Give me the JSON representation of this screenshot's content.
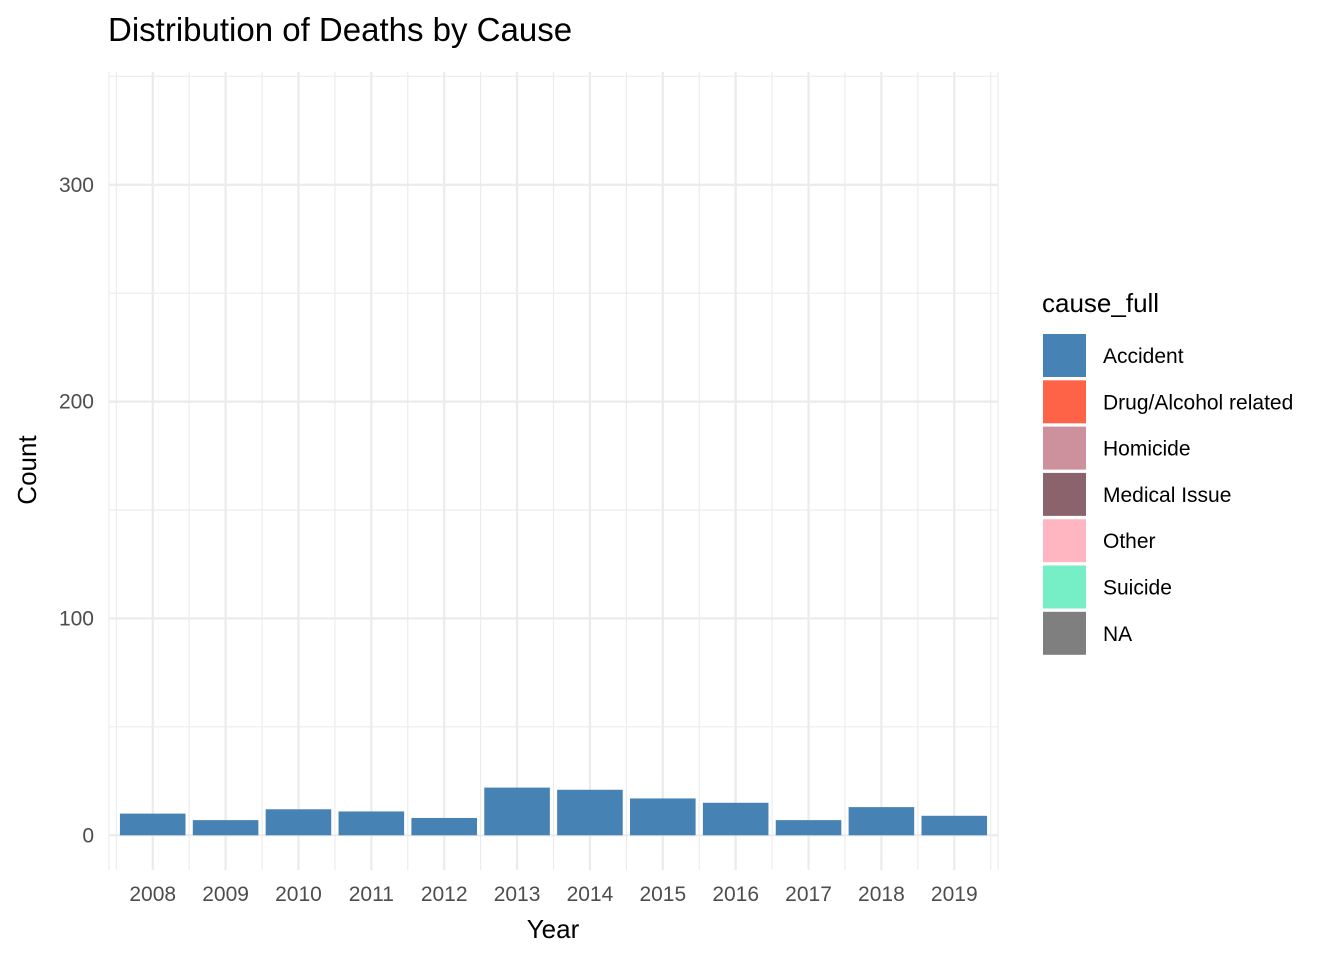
{
  "chart_data": {
    "type": "bar",
    "title": "Distribution of Deaths by Cause",
    "xlabel": "Year",
    "ylabel": "Count",
    "categories": [
      "2008",
      "2009",
      "2010",
      "2011",
      "2012",
      "2013",
      "2014",
      "2015",
      "2016",
      "2017",
      "2018",
      "2019"
    ],
    "series": [
      {
        "name": "Accident",
        "color": "#4682b4",
        "values": [
          10,
          7,
          12,
          11,
          8,
          22,
          21,
          17,
          15,
          7,
          13,
          9
        ]
      }
    ],
    "y_ticks": [
      0,
      100,
      200,
      300
    ],
    "ylim": [
      -16,
      352
    ],
    "grid": true,
    "legend": {
      "title": "cause_full",
      "position": "right",
      "entries": [
        {
          "label": "Accident",
          "color": "#4682b4"
        },
        {
          "label": "Drug/Alcohol related",
          "color": "#ff6347"
        },
        {
          "label": "Homicide",
          "color": "#cd919e"
        },
        {
          "label": "Medical Issue",
          "color": "#8b636c"
        },
        {
          "label": "Other",
          "color": "#ffb6c1"
        },
        {
          "label": "Suicide",
          "color": "#76eec6"
        },
        {
          "label": "NA",
          "color": "#7f7f7f"
        }
      ]
    }
  }
}
